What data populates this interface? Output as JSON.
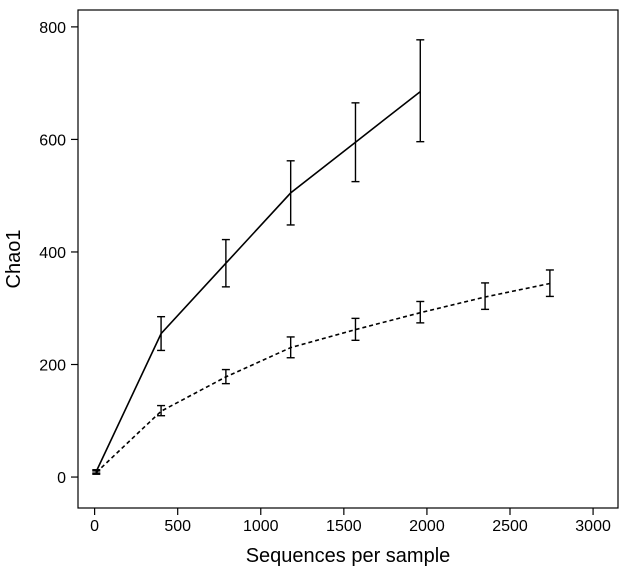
{
  "chart_data": {
    "type": "line",
    "title": "",
    "xlabel": "Sequences per sample",
    "ylabel": "Chao1",
    "xlim": [
      -100,
      3150
    ],
    "ylim": [
      -55,
      830
    ],
    "x_ticks": [
      0,
      500,
      1000,
      1500,
      2000,
      2500,
      3000
    ],
    "y_ticks": [
      0,
      200,
      400,
      600,
      800
    ],
    "grid": false,
    "legend": "none",
    "series": [
      {
        "line_style": "solid",
        "color": "#000000",
        "x": [
          10,
          400,
          790,
          1180,
          1570,
          1960
        ],
        "y": [
          10,
          255,
          380,
          505,
          595,
          685
        ],
        "err_low": [
          7,
          225,
          338,
          448,
          525,
          596
        ],
        "err_high": [
          13,
          285,
          422,
          562,
          665,
          777
        ]
      },
      {
        "line_style": "dashed",
        "color": "#000000",
        "x": [
          10,
          400,
          790,
          1180,
          1570,
          1960,
          2350,
          2740
        ],
        "y": [
          8,
          117,
          178,
          230,
          262,
          292,
          320,
          344
        ],
        "err_low": [
          5,
          109,
          166,
          212,
          243,
          274,
          298,
          321
        ],
        "err_high": [
          11,
          127,
          191,
          249,
          282,
          312,
          345,
          368
        ]
      }
    ]
  }
}
